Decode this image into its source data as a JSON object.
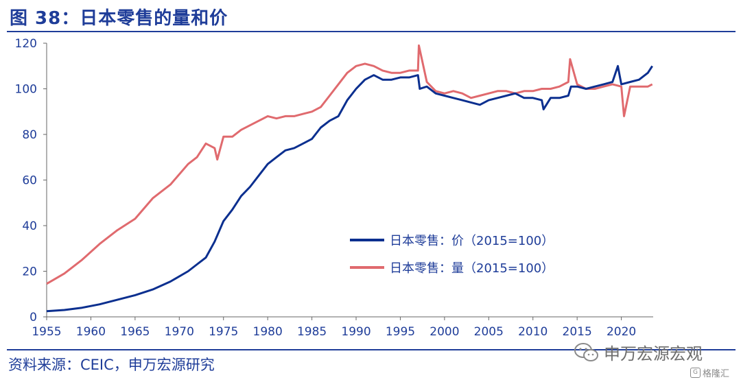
{
  "header": {
    "title": "图 38：日本零售的量和价"
  },
  "footer": {
    "source": "资料来源：CEIC，申万宏源研究"
  },
  "watermark": {
    "text": "申万宏源宏观",
    "brand": "格隆汇"
  },
  "colors": {
    "price": "#0b2f8f",
    "volume": "#e06a6e",
    "accent": "#1f3d99"
  },
  "chart_data": {
    "type": "line",
    "title": "图 38：日本零售的量和价",
    "xlabel": "",
    "ylabel": "",
    "xlim": [
      1955,
      2023.6
    ],
    "ylim": [
      0,
      120
    ],
    "xticks": [
      "1955",
      "1960",
      "1965",
      "1970",
      "1975",
      "1980",
      "1985",
      "1990",
      "1995",
      "2000",
      "2005",
      "2010",
      "2015",
      "2020"
    ],
    "yticks": [
      "0",
      "20",
      "40",
      "60",
      "80",
      "100",
      "120"
    ],
    "legend_position": "center-right",
    "series": [
      {
        "name": "日本零售：价（2015=100）",
        "color": "#0b2f8f",
        "x": [
          1955,
          1957,
          1959,
          1961,
          1963,
          1965,
          1967,
          1969,
          1971,
          1972,
          1973,
          1974,
          1975,
          1976,
          1977,
          1978,
          1979,
          1980,
          1981,
          1982,
          1983,
          1984,
          1985,
          1986,
          1987,
          1988,
          1989,
          1990,
          1991,
          1992,
          1993,
          1994,
          1995,
          1996,
          1997,
          1997.2,
          1998,
          1999,
          2000,
          2001,
          2002,
          2003,
          2004,
          2005,
          2006,
          2007,
          2008,
          2009,
          2010,
          2011,
          2011.2,
          2012,
          2013,
          2014,
          2014.3,
          2015,
          2016,
          2017,
          2018,
          2019,
          2019.6,
          2020,
          2021,
          2022,
          2023,
          2023.5
        ],
        "values": [
          2.5,
          3,
          4,
          5.5,
          7.5,
          9.5,
          12,
          15.5,
          20,
          23,
          26,
          33,
          42,
          47,
          53,
          57,
          62,
          67,
          70,
          73,
          74,
          76,
          78,
          83,
          86,
          88,
          95,
          100,
          104,
          106,
          104,
          104,
          105,
          105,
          106,
          100,
          101,
          98,
          97,
          96,
          95,
          94,
          93,
          95,
          96,
          97,
          98,
          96,
          96,
          95,
          91,
          96,
          96,
          97,
          101,
          101,
          100,
          101,
          102,
          103,
          110,
          102,
          103,
          104,
          107,
          110
        ]
      },
      {
        "name": "日本零售：量（2015=100）",
        "color": "#e06a6e",
        "x": [
          1955,
          1957,
          1959,
          1961,
          1963,
          1965,
          1967,
          1969,
          1971,
          1972,
          1973,
          1974,
          1974.3,
          1975,
          1976,
          1977,
          1978,
          1979,
          1980,
          1981,
          1982,
          1983,
          1984,
          1985,
          1986,
          1987,
          1988,
          1989,
          1990,
          1991,
          1992,
          1993,
          1994,
          1995,
          1996,
          1997,
          1997.1,
          1998,
          1999,
          2000,
          2001,
          2002,
          2003,
          2004,
          2005,
          2006,
          2007,
          2008,
          2009,
          2010,
          2011,
          2012,
          2013,
          2014,
          2014.2,
          2015,
          2016,
          2017,
          2018,
          2019,
          2020,
          2020.3,
          2021,
          2022,
          2023,
          2023.5
        ],
        "values": [
          14.5,
          19,
          25,
          32,
          38,
          43,
          52,
          58,
          67,
          70,
          76,
          74,
          69,
          79,
          79,
          82,
          84,
          86,
          88,
          87,
          88,
          88,
          89,
          90,
          92,
          97,
          102,
          107,
          110,
          111,
          110,
          108,
          107,
          107,
          108,
          108,
          119,
          103,
          99,
          98,
          99,
          98,
          96,
          97,
          98,
          99,
          99,
          98,
          99,
          99,
          100,
          100,
          101,
          103,
          113,
          102,
          100,
          100,
          101,
          102,
          101,
          88,
          101,
          101,
          101,
          102
        ]
      }
    ]
  }
}
